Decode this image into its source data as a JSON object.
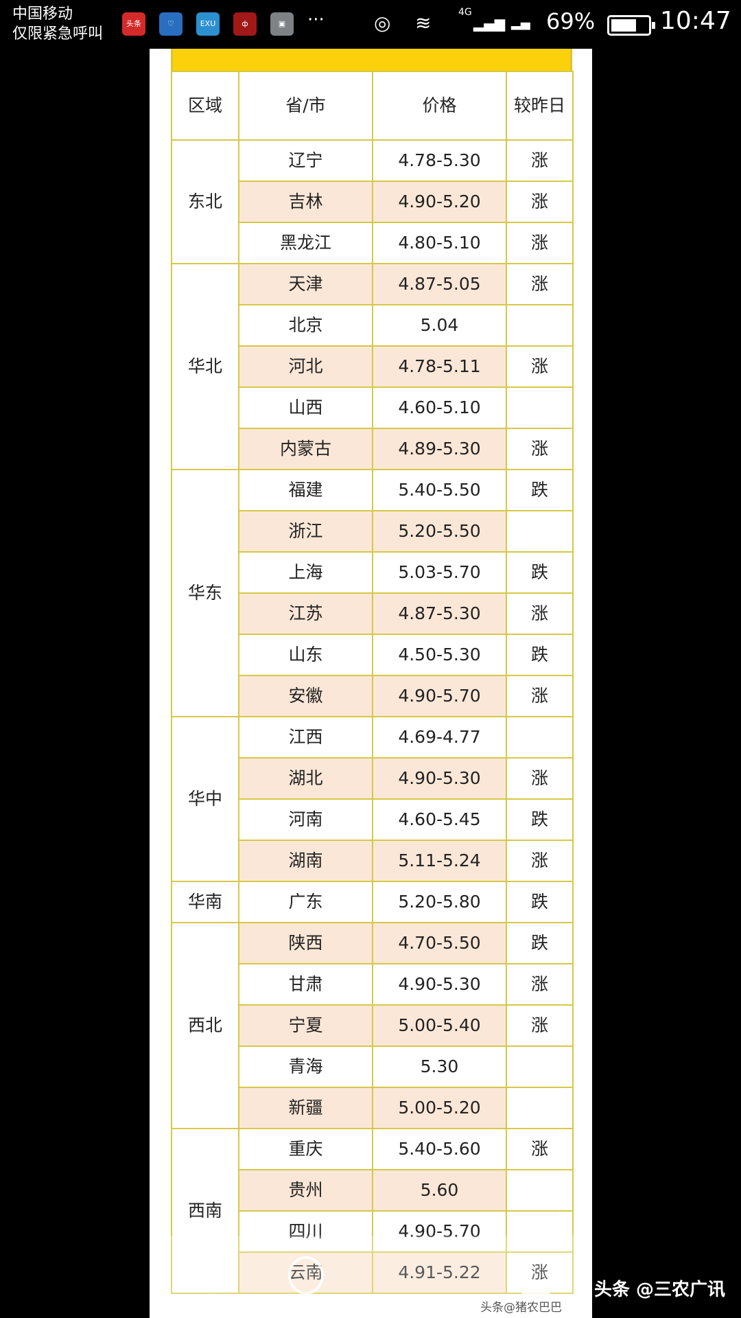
{
  "status_bar": {
    "carrier_line1": "中国移动",
    "carrier_line2": "仅限紧急呼叫",
    "notification_icons": [
      "toutiao-icon",
      "health-icon",
      "exu-icon",
      "weibo-icon",
      "gallery-icon"
    ],
    "toutiao_label": "头条",
    "exu_label": "EXU",
    "more": "···",
    "network": "4G",
    "battery": "69%",
    "time": "10:47"
  },
  "table": {
    "headers": [
      "区域",
      "省/市",
      "价格",
      "较昨日"
    ],
    "colors": {
      "up": "#c0373c",
      "down": "#1f8a3c",
      "shade": "#fbe7d7",
      "bar": "#fcd00a",
      "border": "#d6c846"
    },
    "regions": [
      {
        "name": "东北",
        "rows": [
          [
            "辽宁",
            "4.78-5.30",
            "涨"
          ],
          [
            "吉林",
            "4.90-5.20",
            "涨"
          ],
          [
            "黑龙江",
            "4.80-5.10",
            "涨"
          ]
        ]
      },
      {
        "name": "华北",
        "rows": [
          [
            "天津",
            "4.87-5.05",
            "涨"
          ],
          [
            "北京",
            "5.04",
            ""
          ],
          [
            "河北",
            "4.78-5.11",
            "涨"
          ],
          [
            "山西",
            "4.60-5.10",
            ""
          ],
          [
            "内蒙古",
            "4.89-5.30",
            "涨"
          ]
        ]
      },
      {
        "name": "华东",
        "rows": [
          [
            "福建",
            "5.40-5.50",
            "跌"
          ],
          [
            "浙江",
            "5.20-5.50",
            ""
          ],
          [
            "上海",
            "5.03-5.70",
            "跌"
          ],
          [
            "江苏",
            "4.87-5.30",
            "涨"
          ],
          [
            "山东",
            "4.50-5.30",
            "跌"
          ],
          [
            "安徽",
            "4.90-5.70",
            "涨"
          ]
        ]
      },
      {
        "name": "华中",
        "rows": [
          [
            "江西",
            "4.69-4.77",
            ""
          ],
          [
            "湖北",
            "4.90-5.30",
            "涨"
          ],
          [
            "河南",
            "4.60-5.45",
            "跌"
          ],
          [
            "湖南",
            "5.11-5.24",
            "涨"
          ]
        ]
      },
      {
        "name": "华南",
        "rows": [
          [
            "广东",
            "5.20-5.80",
            "跌"
          ]
        ]
      },
      {
        "name": "西北",
        "rows": [
          [
            "陕西",
            "4.70-5.50",
            "跌"
          ],
          [
            "甘肃",
            "4.90-5.30",
            "涨"
          ],
          [
            "宁夏",
            "5.00-5.40",
            "涨"
          ],
          [
            "青海",
            "5.30",
            ""
          ],
          [
            "新疆",
            "5.00-5.20",
            ""
          ]
        ]
      },
      {
        "name": "西南",
        "rows": [
          [
            "重庆",
            "5.40-5.60",
            "涨"
          ],
          [
            "贵州",
            "5.60",
            ""
          ],
          [
            "四川",
            "4.90-5.70",
            ""
          ],
          [
            "云南",
            "4.91-5.22",
            "涨"
          ]
        ]
      }
    ]
  },
  "watermark": {
    "main": "头条 @三农广讯",
    "sub": "头条@猪农巴巴"
  }
}
